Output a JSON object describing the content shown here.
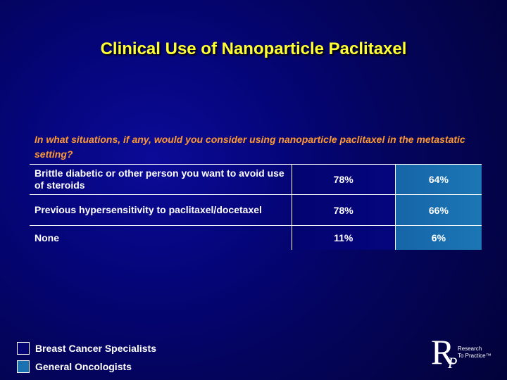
{
  "title": "Clinical Use of Nanoparticle Paclitaxel",
  "question": "In what situations, if any, would you consider using nanoparticle paclitaxel in the metastatic setting?",
  "rows": [
    {
      "label": "Brittle diabetic or other person you want to avoid use of steroids",
      "specialists": "78%",
      "oncologists": "64%"
    },
    {
      "label": "Previous hypersensitivity to paclitaxel/docetaxel",
      "specialists": "78%",
      "oncologists": "66%"
    },
    {
      "label": "None",
      "specialists": "11%",
      "oncologists": "6%"
    }
  ],
  "legend": [
    {
      "label": "Breast Cancer Specialists",
      "color": "#030373"
    },
    {
      "label": "General Oncologists",
      "color": "#1a72b2"
    }
  ],
  "logo": {
    "letter_r": "R",
    "letter_p": "P",
    "line1": "Research",
    "line2": "To Practice™"
  },
  "colors": {
    "title": "#ffff33",
    "question": "#ff9933",
    "background": "#05057a"
  }
}
